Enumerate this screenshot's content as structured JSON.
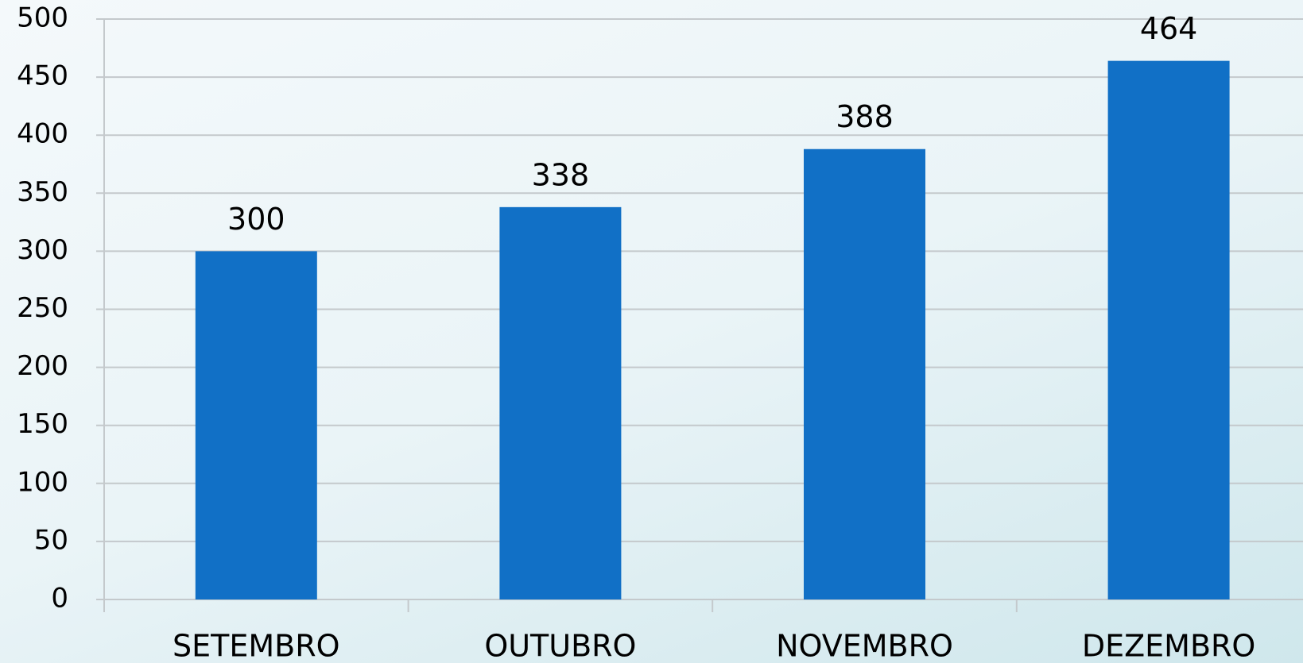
{
  "chart_data": {
    "type": "bar",
    "categories": [
      "SETEMBRO",
      "OUTUBRO",
      "NOVEMBRO",
      "DEZEMBRO"
    ],
    "values": [
      300,
      338,
      388,
      464
    ],
    "color": "#1170c6",
    "ylim": [
      0,
      500
    ],
    "yticks": [
      0,
      50,
      100,
      150,
      200,
      250,
      300,
      350,
      400,
      450,
      500
    ],
    "grid": true
  }
}
